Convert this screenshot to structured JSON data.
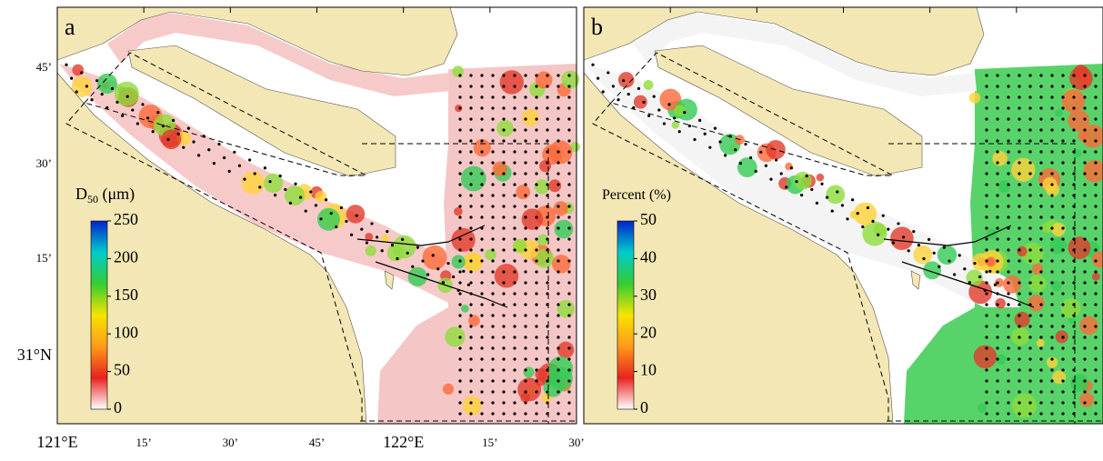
{
  "panels": [
    {
      "label": "a",
      "colorbar": {
        "title": {
          "main": "D",
          "sub": "50",
          "unit": " (μm)"
        },
        "lim": [
          0,
          250
        ],
        "ticks": [
          0,
          50,
          100,
          150,
          200,
          250
        ]
      }
    },
    {
      "label": "b",
      "colorbar": {
        "title": {
          "main": "Percent (%)"
        },
        "lim": [
          0,
          50
        ],
        "ticks": [
          0,
          10,
          20,
          30,
          40,
          50
        ]
      }
    }
  ],
  "y_labels": [
    "45’",
    "30’",
    "15’",
    "31°N"
  ],
  "x_labels": [
    "121°E",
    "15’",
    "30’",
    "45’",
    "122°E",
    "15’",
    "30’"
  ]
}
